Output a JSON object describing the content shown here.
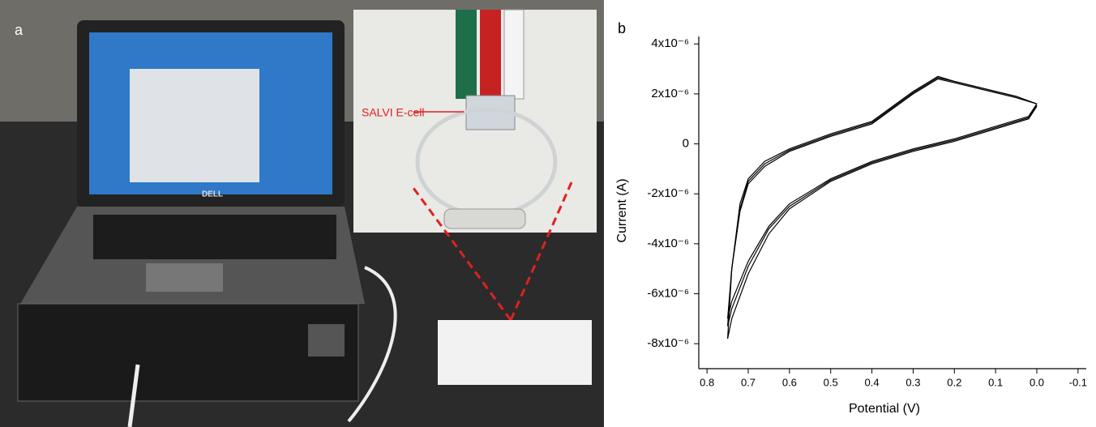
{
  "photo": {
    "panel_label": "a",
    "annotation": "SALVI E-cell",
    "brand": "DELL"
  },
  "chart_data": {
    "type": "line",
    "panel_label": "b",
    "x_label": "Potential (V)",
    "y_label": "Current (A)",
    "xlim": [
      0.82,
      -0.12
    ],
    "ylim": [
      -9e-06,
      4.3e-06
    ],
    "xticks": [
      0.8,
      0.7,
      0.6,
      0.5,
      0.4,
      0.3,
      0.2,
      0.1,
      {
        "value": 0,
        "label": "0.0"
      },
      -0.1
    ],
    "yticks": [
      {
        "value": 4e-06,
        "label": "4x10⁻⁶"
      },
      {
        "value": 2e-06,
        "label": "2x10⁻⁶"
      },
      0,
      {
        "value": -2e-06,
        "label": "-2x10⁻⁶"
      },
      {
        "value": -4e-06,
        "label": "-4x10⁻⁶"
      },
      {
        "value": -6e-06,
        "label": "-6x10⁻⁶"
      },
      {
        "value": -8e-06,
        "label": "-8x10⁻⁶"
      }
    ],
    "series": [
      {
        "color": "#000000",
        "x": [
          0.0,
          0.05,
          0.1,
          0.2,
          0.24,
          0.3,
          0.4,
          0.5,
          0.6,
          0.66,
          0.7,
          0.72,
          0.74,
          0.75,
          0.74,
          0.7,
          0.65,
          0.6,
          0.5,
          0.4,
          0.3,
          0.2,
          0.1,
          0.02,
          0.0
        ],
        "values": [
          1.6e-06,
          1.9e-06,
          2.1e-06,
          2.5e-06,
          2.7e-06,
          2.1e-06,
          9e-07,
          4e-07,
          -2e-07,
          -7e-07,
          -1.4e-06,
          -2.4e-06,
          -5e-06,
          -7.8e-06,
          -7e-06,
          -5.2e-06,
          -3.6e-06,
          -2.6e-06,
          -1.5e-06,
          -8e-07,
          -3e-07,
          1e-07,
          6e-07,
          1e-06,
          1.5e-06
        ]
      },
      {
        "color": "#000000",
        "x": [
          0.0,
          0.05,
          0.1,
          0.2,
          0.24,
          0.3,
          0.4,
          0.5,
          0.6,
          0.66,
          0.7,
          0.72,
          0.74,
          0.75,
          0.74,
          0.7,
          0.65,
          0.6,
          0.5,
          0.4,
          0.3,
          0.2,
          0.1,
          0.02,
          0.0
        ],
        "values": [
          1.6e-06,
          1.9e-06,
          2.1e-06,
          2.5e-06,
          2.65e-06,
          2.05e-06,
          8.5e-07,
          3.5e-07,
          -2.5e-07,
          -8e-07,
          -1.5e-06,
          -2.6e-06,
          -5e-06,
          -7.3e-06,
          -6.6e-06,
          -4.9e-06,
          -3.4e-06,
          -2.5e-06,
          -1.45e-06,
          -7.5e-07,
          -2.5e-07,
          1.5e-07,
          6.5e-07,
          1.05e-06,
          1.55e-06
        ]
      },
      {
        "color": "#000000",
        "x": [
          0.0,
          0.05,
          0.1,
          0.2,
          0.24,
          0.3,
          0.4,
          0.5,
          0.6,
          0.66,
          0.7,
          0.72,
          0.74,
          0.75,
          0.74,
          0.7,
          0.65,
          0.6,
          0.5,
          0.4,
          0.3,
          0.2,
          0.1,
          0.02,
          0.0
        ],
        "values": [
          1.6e-06,
          1.85e-06,
          2.05e-06,
          2.45e-06,
          2.6e-06,
          2e-06,
          8e-07,
          3e-07,
          -3e-07,
          -9e-07,
          -1.6e-06,
          -2.7e-06,
          -5e-06,
          -7e-06,
          -6.3e-06,
          -4.7e-06,
          -3.3e-06,
          -2.4e-06,
          -1.4e-06,
          -7e-07,
          -2e-07,
          2e-07,
          7e-07,
          1.1e-06,
          1.6e-06
        ]
      }
    ]
  }
}
